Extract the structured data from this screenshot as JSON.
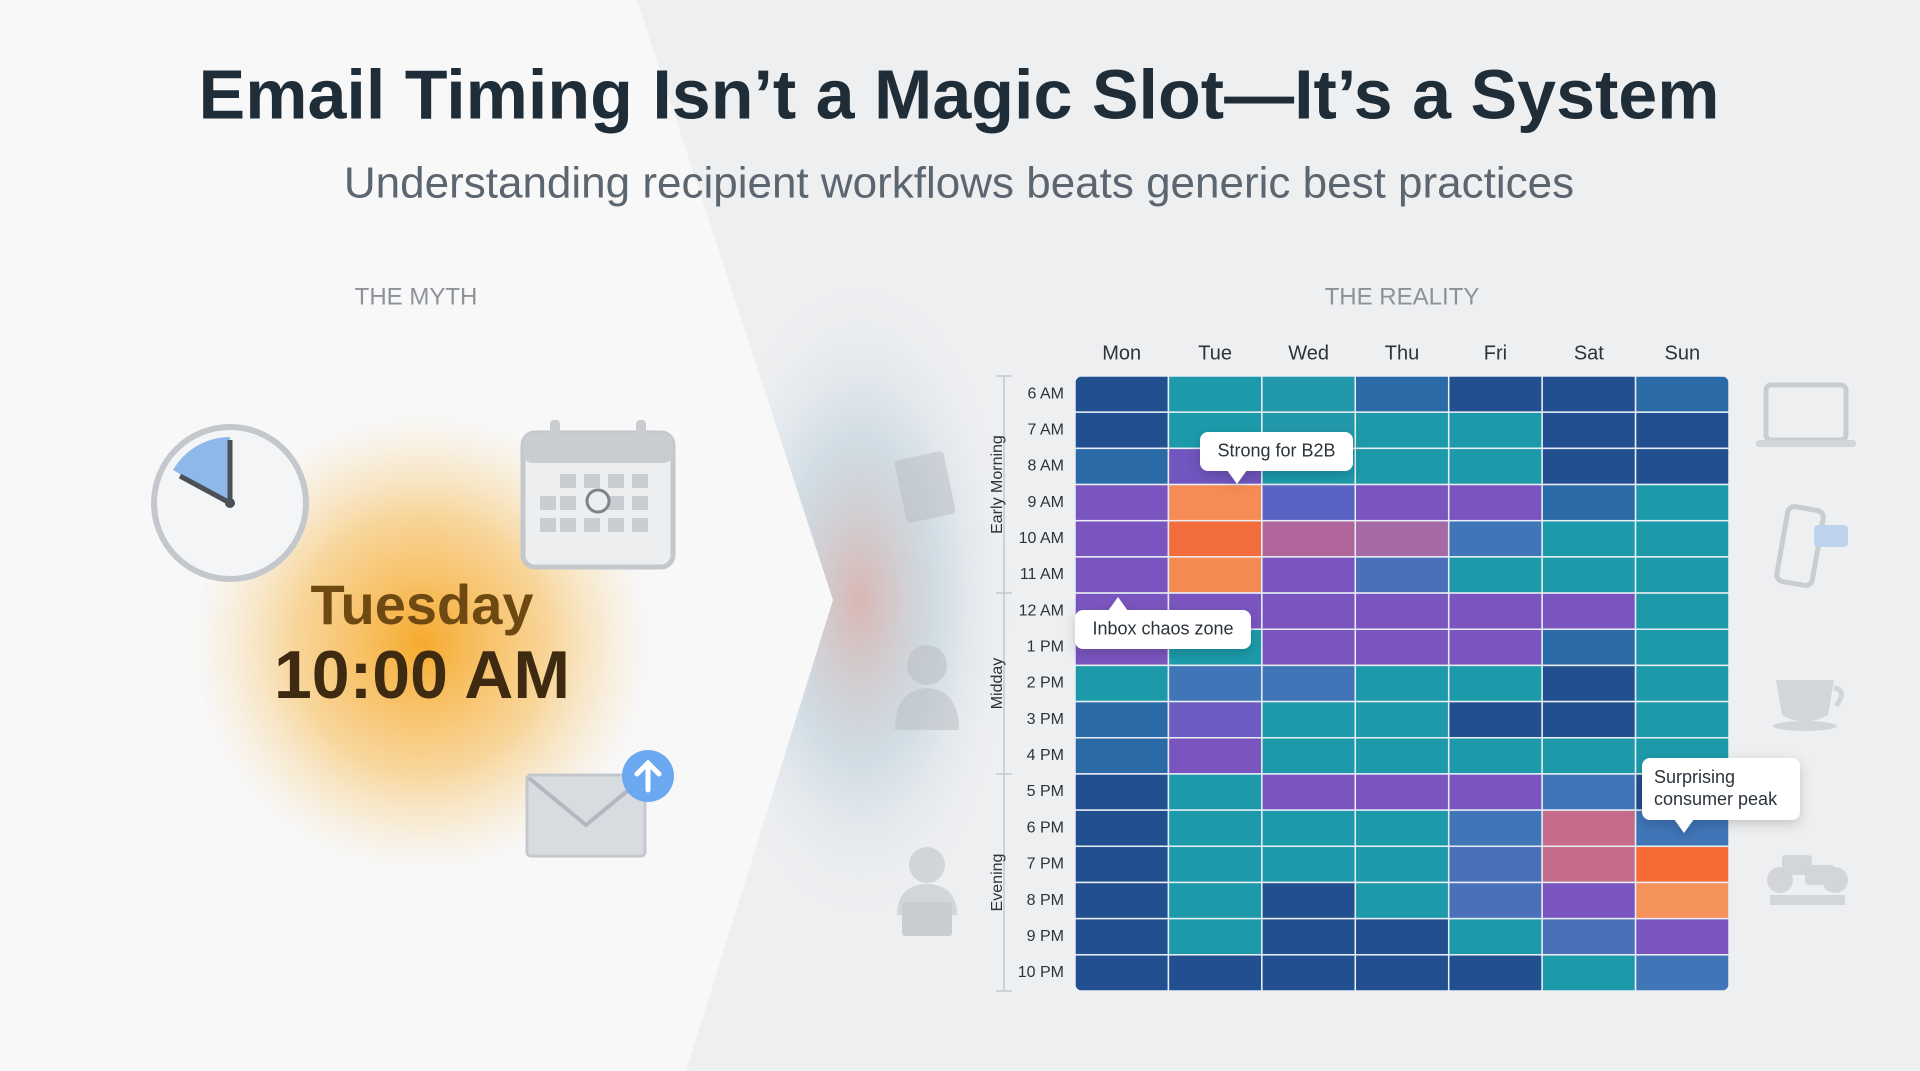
{
  "header": {
    "title": "Email Timing Isn’t a Magic Slot—It’s a System",
    "subtitle": "Understanding recipient workflows beats generic best practices"
  },
  "myth": {
    "label": "THE MYTH",
    "day": "Tuesday",
    "time": "10:00 AM"
  },
  "reality": {
    "label": "THE REALITY",
    "heatmap": {
      "days": [
        "Mon",
        "Tue",
        "Wed",
        "Thu",
        "Fri",
        "Sat",
        "Sun"
      ],
      "hours": [
        "6 AM",
        "7 AM",
        "8 AM",
        "9 AM",
        "10 AM",
        "11 AM",
        "12 AM",
        "1 PM",
        "2 PM",
        "3 PM",
        "4 PM",
        "5 PM",
        "6 PM",
        "7 PM",
        "8 PM",
        "9 PM",
        "10 PM"
      ],
      "groups": [
        "Early Morning",
        "Midday",
        "Evening"
      ],
      "cells": [
        [
          "#22508f",
          "#1e9aaa",
          "#2199aa",
          "#2a6aa6",
          "#22508f",
          "#22508f",
          "#2a6aa6"
        ],
        [
          "#22508f",
          "#1e9aaa",
          "#2199aa",
          "#1f9aaa",
          "#1f9aaa",
          "#22508f",
          "#22508f"
        ],
        [
          "#2a6aa6",
          "#7155c0",
          "#1f9aaa",
          "#1f9aaa",
          "#1f9aaa",
          "#22508f",
          "#22508f"
        ],
        [
          "#7a55bf",
          "#f68b55",
          "#5a64c4",
          "#7a55bf",
          "#7a55bf",
          "#2a6aa6",
          "#1f9aaa"
        ],
        [
          "#7a55bf",
          "#f36c3a",
          "#b0669a",
          "#a56aa6",
          "#3f75b8",
          "#1f9aaa",
          "#1f9aaa"
        ],
        [
          "#7a55bf",
          "#f58a52",
          "#7a55bf",
          "#4c6fba",
          "#1f9aaa",
          "#1f9aaa",
          "#1f9aaa"
        ],
        [
          "#7a55bf",
          "#7a55bf",
          "#7a55bf",
          "#7a55bf",
          "#7a55bf",
          "#7a55bf",
          "#1f9aaa"
        ],
        [
          "#7a55bf",
          "#1f9aaa",
          "#7a55bf",
          "#7a55bf",
          "#7a55bf",
          "#2a6aa6",
          "#1f9aaa"
        ],
        [
          "#1f9aaa",
          "#3f75b8",
          "#3f75b8",
          "#1f9aaa",
          "#1f9aaa",
          "#22508f",
          "#1f9aaa"
        ],
        [
          "#2a6aa6",
          "#6d5cc3",
          "#1f9aaa",
          "#1f9aaa",
          "#22508f",
          "#22508f",
          "#1f9aaa"
        ],
        [
          "#2a6aa6",
          "#7a55bf",
          "#1f9aaa",
          "#1f9aaa",
          "#1f9aaa",
          "#1f9aaa",
          "#1f9aaa"
        ],
        [
          "#22508f",
          "#1f9aaa",
          "#7a55bf",
          "#7a55bf",
          "#7a55bf",
          "#3f75b8",
          "#22508f"
        ],
        [
          "#22508f",
          "#1f9aaa",
          "#1f9aaa",
          "#1f9aaa",
          "#3f75b8",
          "#c46c8a",
          "#3f75b8"
        ],
        [
          "#22508f",
          "#1f9aaa",
          "#1f9aaa",
          "#1f9aaa",
          "#4c6fba",
          "#c46c8a",
          "#f56a35"
        ],
        [
          "#22508f",
          "#1f9aaa",
          "#22508f",
          "#1f9aaa",
          "#4c6fba",
          "#7a55bf",
          "#f5915a"
        ],
        [
          "#22508f",
          "#1f9aaa",
          "#22508f",
          "#22508f",
          "#1f9aaa",
          "#4c6fba",
          "#7a55bf"
        ],
        [
          "#22508f",
          "#22508f",
          "#22508f",
          "#22508f",
          "#22508f",
          "#1f9aaa",
          "#3f75b8"
        ]
      ]
    },
    "callouts": [
      {
        "lines": [
          "Strong for B2B"
        ]
      },
      {
        "lines": [
          "Inbox chaos zone"
        ]
      },
      {
        "lines": [
          "Surprising",
          "consumer peak"
        ]
      }
    ]
  }
}
